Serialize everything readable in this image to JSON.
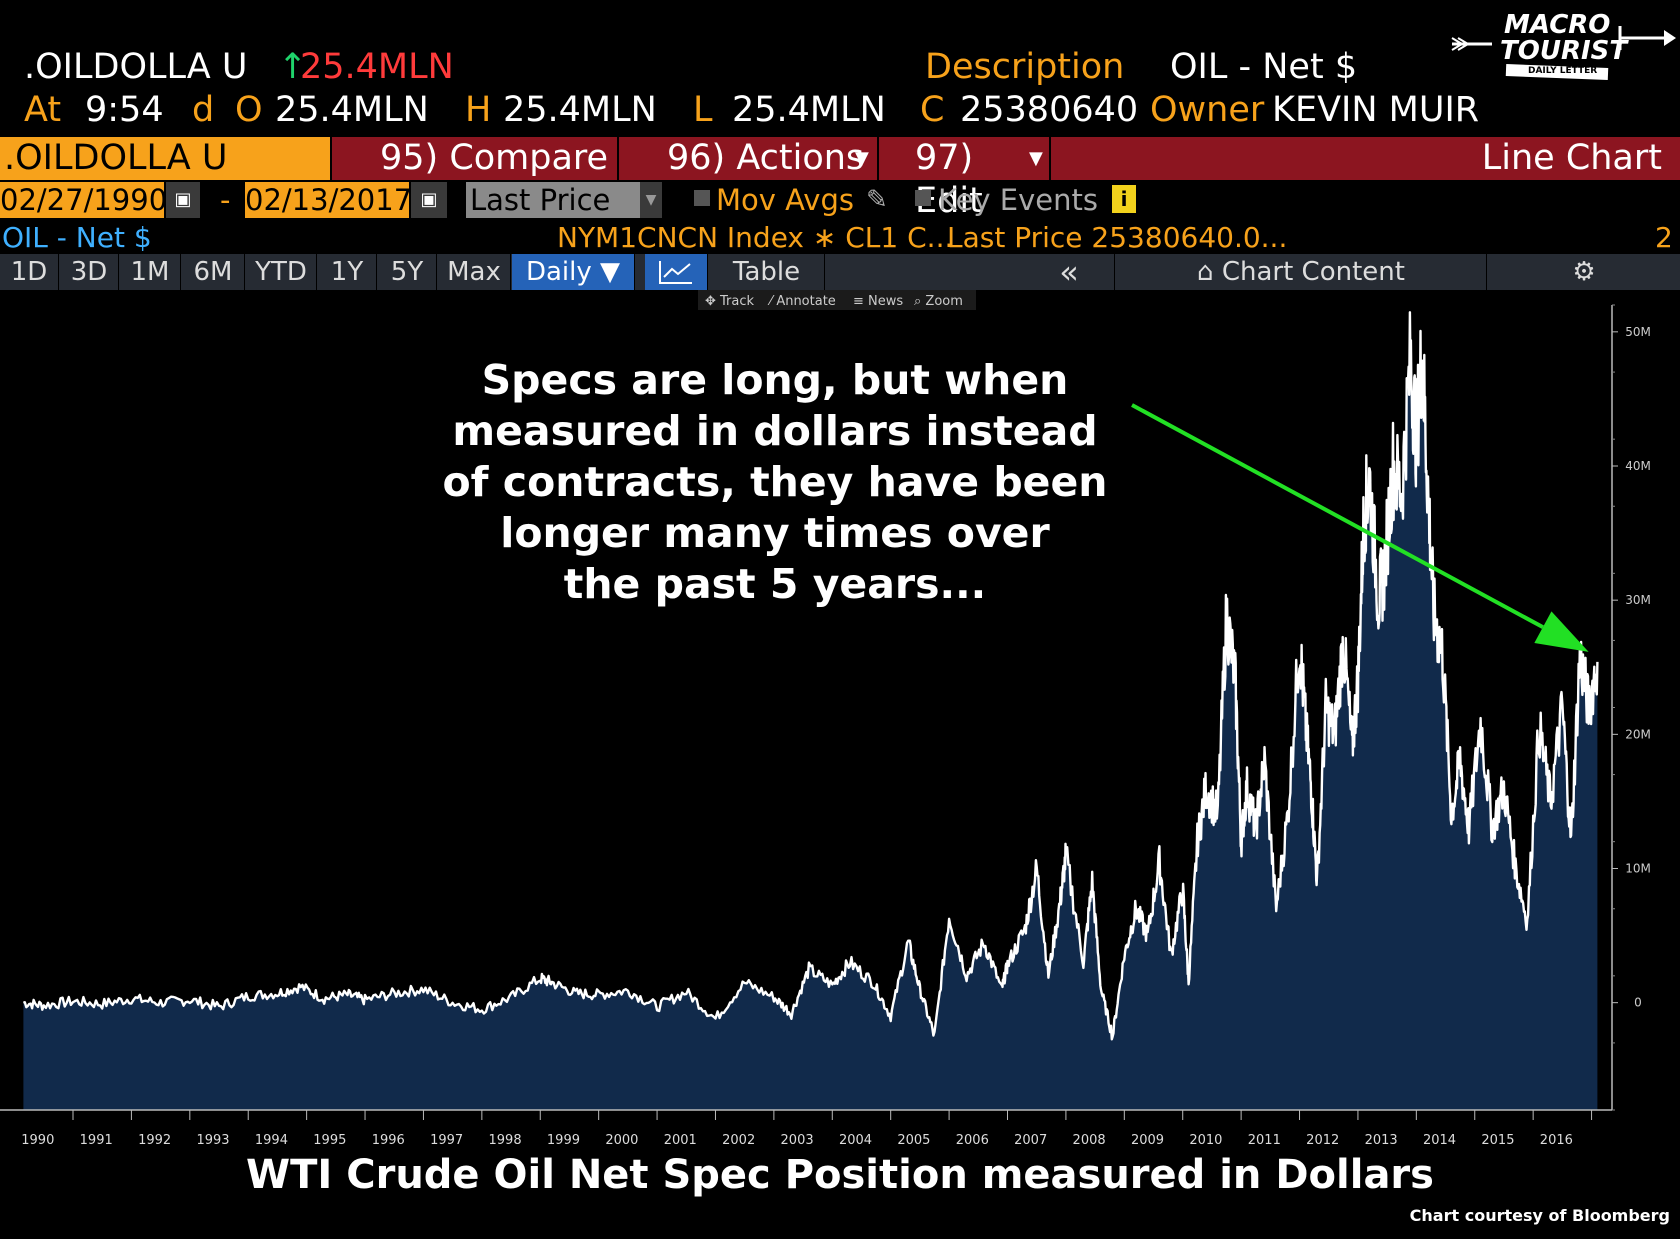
{
  "header": {
    "ticker": ".OILDOLLA U",
    "change_arrow": "↑",
    "change_value": "25.4MLN",
    "description_label": "Description",
    "description_value": "OIL - Net $",
    "at_label": "At",
    "time": "9:54",
    "d_label": "d",
    "o_label": "O",
    "o_value": "25.4MLN",
    "h_label": "H",
    "h_value": "25.4MLN",
    "l_label": "L",
    "l_value": "25.4MLN",
    "c_label": "C",
    "c_value": "25380640",
    "owner_label": "Owner",
    "owner_value": "KEVIN MUIR"
  },
  "logo": {
    "line1": "MACRO",
    "line2": "TOURIST",
    "tagline": "DAILY LETTER"
  },
  "toolbar": {
    "index_name": ".OILDOLLA U Index",
    "compare": "95) Compare",
    "actions": "96) Actions",
    "edit": "97) Edit",
    "chart_type": "Line Chart"
  },
  "controls": {
    "start_date": "02/27/1990",
    "date_sep": "-",
    "end_date": "02/13/2017",
    "field": "Last Price",
    "mov_avgs": "Mov Avgs",
    "key_events": "Key Events"
  },
  "legend_row": {
    "series_name": "OIL - Net $",
    "security": "NYM1CNCN Index ∗ CL1 C...",
    "last_price": "Last Price 25380640.0...",
    "count": "2"
  },
  "timeframes": [
    "1D",
    "3D",
    "1M",
    "6M",
    "YTD",
    "1Y",
    "5Y",
    "Max"
  ],
  "period": "Daily ▼",
  "table_label": "Table",
  "collapse_label": "«",
  "chart_content_label": "Chart Content",
  "mini_tools": [
    "Track",
    "Annotate",
    "News",
    "Zoom"
  ],
  "annotation": [
    "Specs are long, but when",
    "measured in dollars instead",
    "of contracts, they have been",
    "longer many times over",
    "the past 5 years..."
  ],
  "caption": "WTI Crude Oil Net Spec Position measured in Dollars",
  "credit": "Chart courtesy of Bloomberg",
  "chart_data": {
    "type": "area",
    "ylim": [
      -8000000,
      52000000
    ],
    "y_ticks": [
      0,
      10000000,
      20000000,
      30000000,
      40000000,
      50000000
    ],
    "y_tick_labels": [
      "0",
      "10M",
      "20M",
      "30M",
      "40M",
      "50M"
    ],
    "x_ticks": [
      "1990",
      "1991",
      "1992",
      "1993",
      "1994",
      "1995",
      "1996",
      "1997",
      "1998",
      "1999",
      "2000",
      "2001",
      "2002",
      "2003",
      "2004",
      "2005",
      "2006",
      "2007",
      "2008",
      "2009",
      "2010",
      "2011",
      "2012",
      "2013",
      "2014",
      "2015",
      "2016"
    ],
    "colors": {
      "line": "#ffffff",
      "fill": "#112a4b",
      "arrow": "#22e024",
      "background": "#000000"
    },
    "series": [
      {
        "x": [
          1990.15,
          1990.5,
          1991.0,
          1991.5,
          1992.0,
          1992.5,
          1993.0,
          1993.5,
          1994.0,
          1994.5,
          1994.9,
          1995.3,
          1995.7,
          1996.0,
          1996.5,
          1997.0,
          1997.5,
          1998.0,
          1998.5,
          1999.0,
          1999.2,
          1999.6,
          2000.0,
          2000.5,
          2001.0,
          2001.5,
          2002.0,
          2002.5,
          2003.0,
          2003.3,
          2003.6,
          2004.0,
          2004.3,
          2004.7,
          2005.0,
          2005.3,
          2005.5,
          2005.75,
          2006.0,
          2006.3,
          2006.6,
          2006.9,
          2007.0,
          2007.3,
          2007.5,
          2007.7,
          2007.9,
          2008.0,
          2008.3,
          2008.45,
          2008.6,
          2008.8,
          2009.0,
          2009.2,
          2009.4,
          2009.6,
          2009.8,
          2010.0,
          2010.1,
          2010.25,
          2010.4,
          2010.6,
          2010.75,
          2010.9,
          2011.0,
          2011.1,
          2011.25,
          2011.4,
          2011.6,
          2011.8,
          2012.0,
          2012.1,
          2012.2,
          2012.3,
          2012.45,
          2012.6,
          2012.75,
          2012.9,
          2013.0,
          2013.1,
          2013.2,
          2013.35,
          2013.45,
          2013.6,
          2013.75,
          2013.9,
          2014.0,
          2014.1,
          2014.2,
          2014.3,
          2014.45,
          2014.6,
          2014.75,
          2014.9,
          2015.1,
          2015.3,
          2015.5,
          2015.7,
          2015.9,
          2016.1,
          2016.3,
          2016.5,
          2016.65,
          2016.8,
          2016.95,
          2017.1
        ],
        "y": [
          0,
          -200000,
          100000,
          -100000,
          300000,
          0,
          200000,
          -300000,
          500000,
          700000,
          1200000,
          300000,
          600000,
          200000,
          700000,
          1000000,
          0,
          -500000,
          400000,
          1800000,
          1500000,
          700000,
          600000,
          900000,
          -300000,
          800000,
          -1200000,
          1500000,
          400000,
          -800000,
          2500000,
          1300000,
          3000000,
          1500000,
          -1000000,
          4500000,
          1000000,
          -2500000,
          6500000,
          2000000,
          4500000,
          1000000,
          2800000,
          5500000,
          10000000,
          2000000,
          7500000,
          11000000,
          3000000,
          9000000,
          1000000,
          -2500000,
          3500000,
          7000000,
          5000000,
          10500000,
          3500000,
          8500000,
          1500000,
          12000000,
          16000000,
          14000000,
          29000000,
          24000000,
          12000000,
          16000000,
          13000000,
          18000000,
          7000000,
          14000000,
          27000000,
          21000000,
          16000000,
          9000000,
          22000000,
          20000000,
          27000000,
          19000000,
          24000000,
          36000000,
          39000000,
          30000000,
          32000000,
          40000000,
          38000000,
          48000000,
          42000000,
          48500000,
          38000000,
          29000000,
          26000000,
          14000000,
          18000000,
          13000000,
          21000000,
          13000000,
          16000000,
          10000000,
          6000000,
          20500000,
          15000000,
          22000000,
          12000000,
          26000000,
          22000000,
          25400000
        ]
      }
    ]
  }
}
